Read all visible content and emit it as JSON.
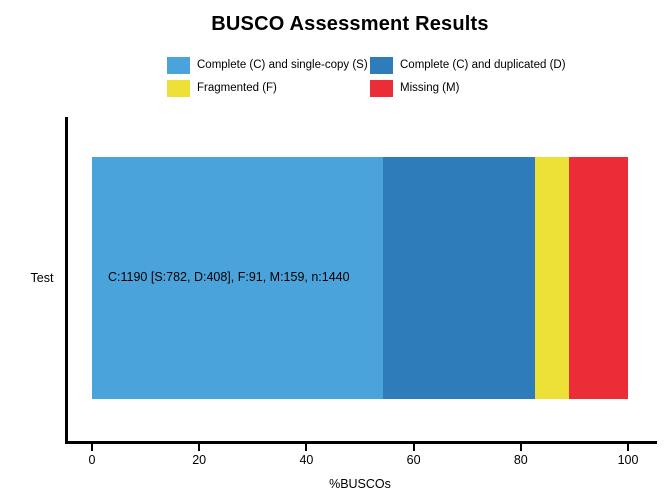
{
  "title": "BUSCO Assessment Results",
  "chart_data": {
    "type": "bar",
    "orientation": "horizontal",
    "stacked": true,
    "title": "BUSCO Assessment Results",
    "categories": [
      "Test"
    ],
    "series": [
      {
        "name": "Complete (C) and single-copy (S)",
        "count": 782,
        "percent": 54.31,
        "color": "#4AA4DB"
      },
      {
        "name": "Complete (C) and duplicated (D)",
        "count": 408,
        "percent": 28.33,
        "color": "#2E7DBA"
      },
      {
        "name": "Fragmented (F)",
        "count": 91,
        "percent": 6.32,
        "color": "#EDE137"
      },
      {
        "name": "Missing (M)",
        "count": 159,
        "percent": 11.04,
        "color": "#EB2D37"
      }
    ],
    "total_buscos": 1440,
    "complete_total": 1190,
    "bar_label": "C:1190 [S:782, D:408], F:91, M:159, n:1440",
    "xlabel": "%BUSCOs",
    "x_ticks": [
      0,
      20,
      40,
      60,
      80,
      100
    ],
    "xlim": [
      0,
      100
    ],
    "legend_position": "top",
    "grid": false,
    "axis_color": "#000000",
    "background_color": "#ffffff"
  }
}
